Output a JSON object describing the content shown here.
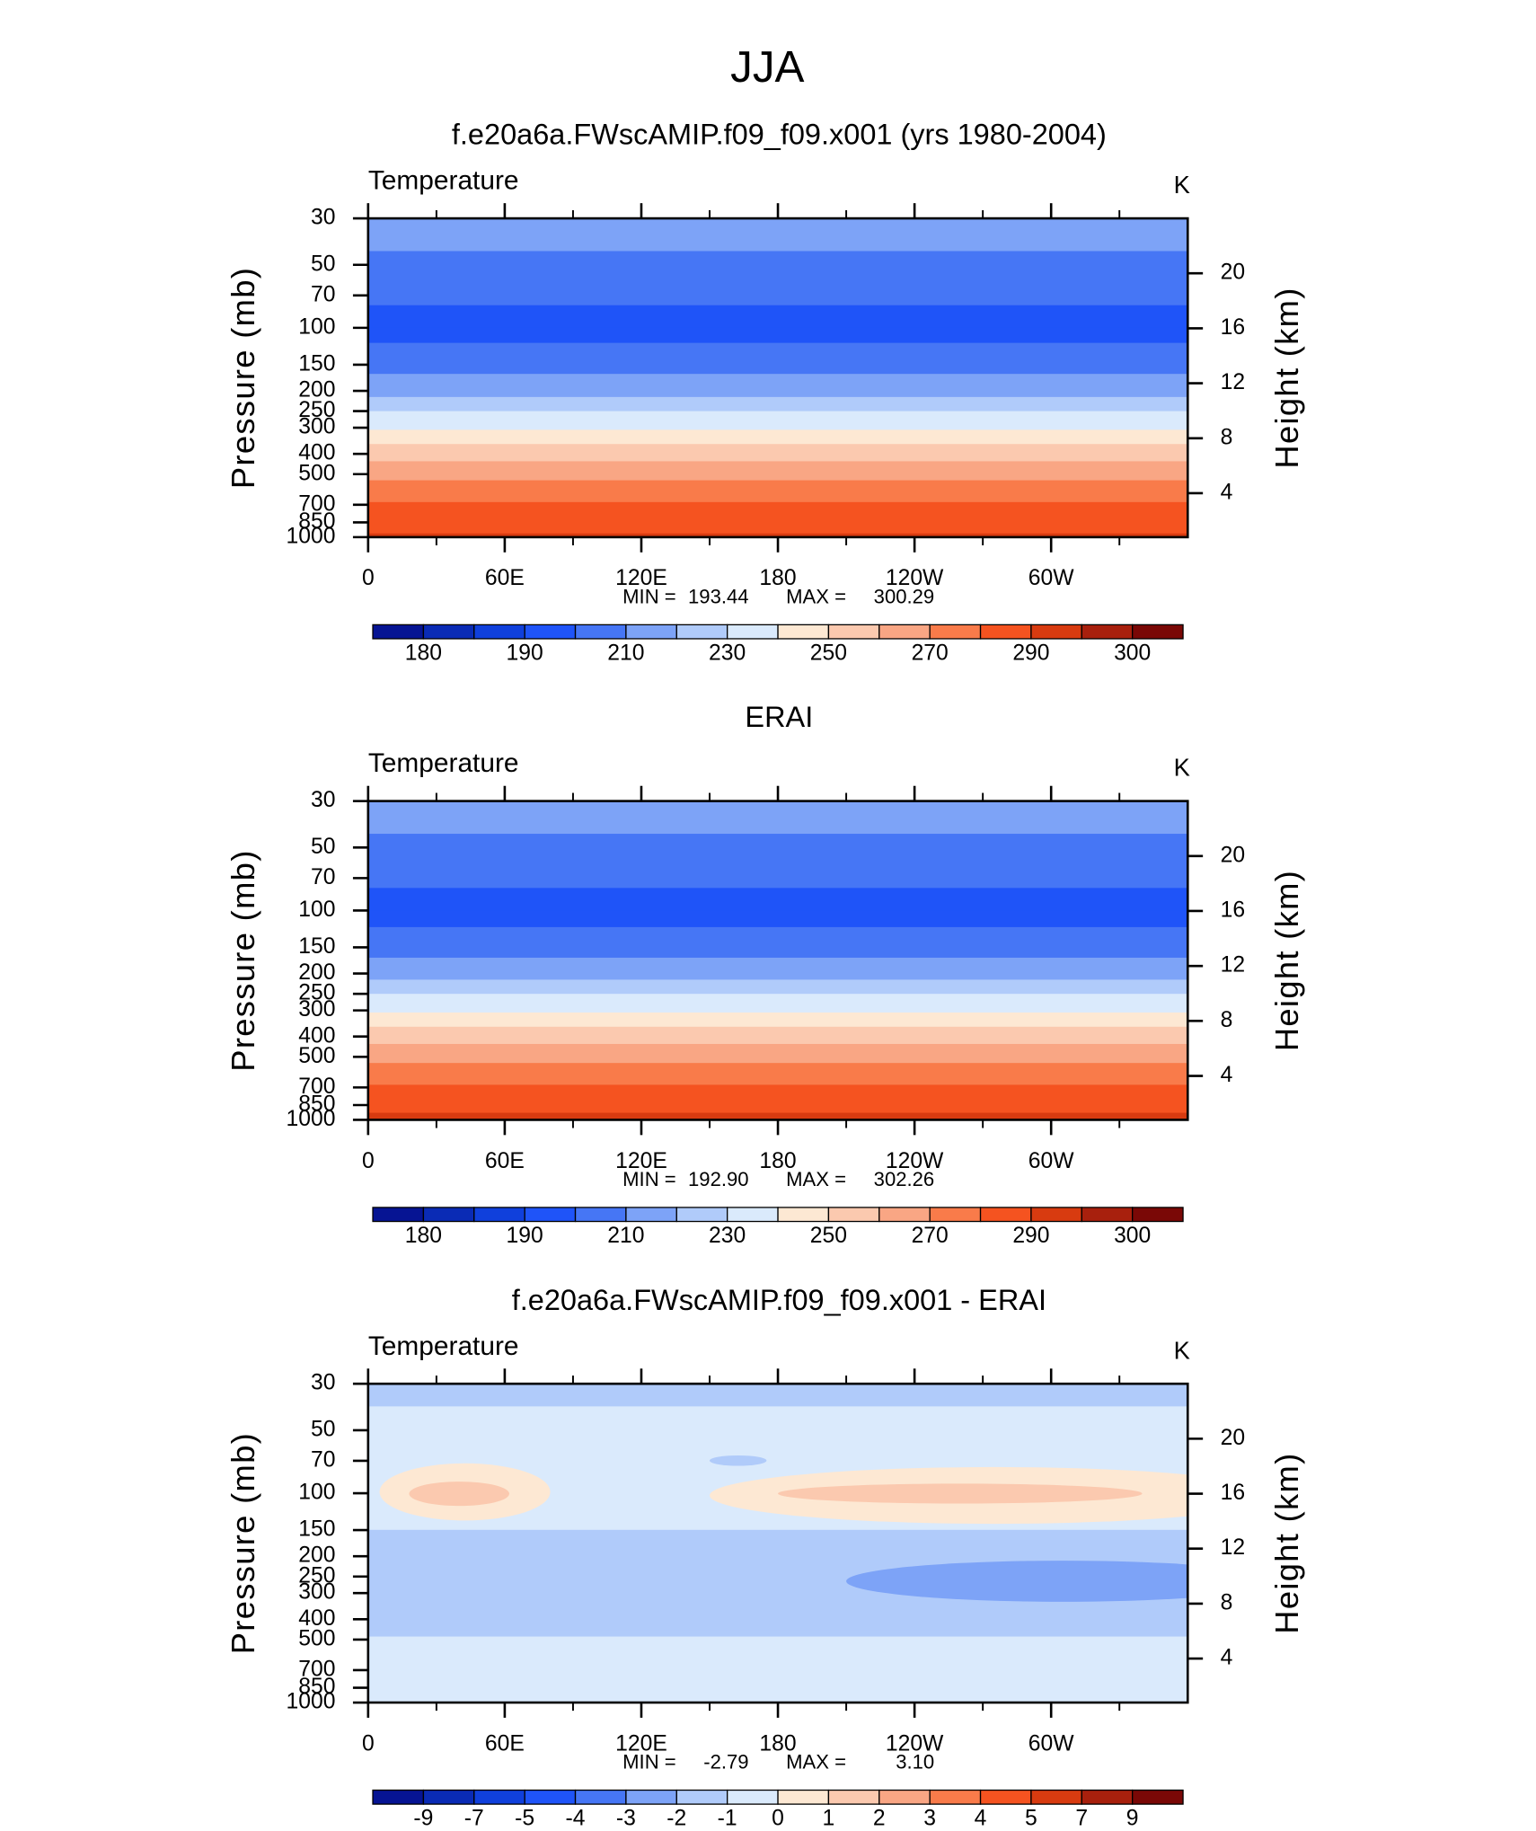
{
  "title": "JJA",
  "chart_data": [
    {
      "type": "contour",
      "title": "f.e20a6a.FWscAMIP.f09_f09.x001 (yrs 1980-2004)",
      "subtitle": "Temperature",
      "units": "K",
      "ylabel": "Pressure (mb)",
      "y2label": "Height (km)",
      "xlim": [
        0,
        360
      ],
      "xticks": [
        0,
        {
          "value": 60,
          "label": "60E"
        },
        {
          "value": 120,
          "label": "120E"
        },
        180,
        {
          "value": 240,
          "label": "120W"
        },
        {
          "value": 300,
          "label": "60W"
        }
      ],
      "xminor": [
        30,
        90,
        150,
        210,
        270,
        330
      ],
      "ylim": [
        1000,
        30
      ],
      "log_y": true,
      "yticks": [
        30,
        50,
        70,
        100,
        150,
        200,
        250,
        300,
        400,
        500,
        700,
        850,
        1000
      ],
      "y2lim": [
        0.8,
        24
      ],
      "y2ticks": [
        4,
        8,
        12,
        16,
        20
      ],
      "stats": [
        {
          "name": "MIN =",
          "value": 193.44
        },
        {
          "name": "MAX =",
          "value": 300.29
        }
      ],
      "colorbar": {
        "levels": [
          180,
          185,
          190,
          200,
          210,
          220,
          230,
          240,
          250,
          260,
          270,
          280,
          290,
          295,
          300
        ],
        "label_step": 2,
        "colors": [
          "#061493",
          "#0a2bb5",
          "#1040dc",
          "#1f54f8",
          "#4676f5",
          "#7da3f7",
          "#b0cbfa",
          "#daeafc",
          "#fde8d3",
          "#fbc9af",
          "#f9a684",
          "#f97b4a",
          "#f55320",
          "#d83b10",
          "#a8200d",
          "#7a0806"
        ]
      },
      "profile": {
        "pressure": [
          30,
          43,
          78,
          100,
          118,
          166,
          214,
          250,
          307,
          359,
          434,
          535,
          680,
          855,
          960,
          1000
        ],
        "values": [
          215,
          210,
          200,
          195,
          200,
          210,
          220,
          230,
          240,
          250,
          260,
          270,
          280,
          287,
          290,
          292
        ]
      },
      "anomalies": []
    },
    {
      "type": "contour",
      "title": "ERAI",
      "subtitle": "Temperature",
      "units": "K",
      "ylabel": "Pressure (mb)",
      "y2label": "Height (km)",
      "xlim": [
        0,
        360
      ],
      "xticks": [
        0,
        {
          "value": 60,
          "label": "60E"
        },
        {
          "value": 120,
          "label": "120E"
        },
        180,
        {
          "value": 240,
          "label": "120W"
        },
        {
          "value": 300,
          "label": "60W"
        }
      ],
      "xminor": [
        30,
        90,
        150,
        210,
        270,
        330
      ],
      "ylim": [
        1000,
        30
      ],
      "log_y": true,
      "yticks": [
        30,
        50,
        70,
        100,
        150,
        200,
        250,
        300,
        400,
        500,
        700,
        850,
        1000
      ],
      "y2lim": [
        0.8,
        24
      ],
      "y2ticks": [
        4,
        8,
        12,
        16,
        20
      ],
      "stats": [
        {
          "name": "MIN =",
          "value": 192.9,
          "label": "192.90"
        },
        {
          "name": "MAX =",
          "value": 302.26
        }
      ],
      "colorbar": {
        "levels": [
          180,
          185,
          190,
          200,
          210,
          220,
          230,
          240,
          250,
          260,
          270,
          280,
          290,
          295,
          300
        ],
        "label_step": 2,
        "colors": [
          "#061493",
          "#0a2bb5",
          "#1040dc",
          "#1f54f8",
          "#4676f5",
          "#7da3f7",
          "#b0cbfa",
          "#daeafc",
          "#fde8d3",
          "#fbc9af",
          "#f9a684",
          "#f97b4a",
          "#f55320",
          "#d83b10",
          "#a8200d",
          "#7a0806"
        ]
      },
      "profile": {
        "pressure": [
          30,
          43,
          78,
          100,
          120,
          168,
          214,
          250,
          307,
          359,
          434,
          535,
          680,
          855,
          950,
          1000
        ],
        "values": [
          215,
          210,
          200,
          194,
          200,
          210,
          220,
          230,
          240,
          250,
          260,
          270,
          280,
          287,
          291,
          294
        ]
      },
      "anomalies": []
    },
    {
      "type": "contour",
      "title": "f.e20a6a.FWscAMIP.f09_f09.x001 - ERAI",
      "subtitle": "Temperature",
      "units": "K",
      "ylabel": "Pressure (mb)",
      "y2label": "Height (km)",
      "xlim": [
        0,
        360
      ],
      "xticks": [
        0,
        {
          "value": 60,
          "label": "60E"
        },
        {
          "value": 120,
          "label": "120E"
        },
        180,
        {
          "value": 240,
          "label": "120W"
        },
        {
          "value": 300,
          "label": "60W"
        }
      ],
      "xminor": [
        30,
        90,
        150,
        210,
        270,
        330
      ],
      "ylim": [
        1000,
        30
      ],
      "log_y": true,
      "yticks": [
        30,
        50,
        70,
        100,
        150,
        200,
        250,
        300,
        400,
        500,
        700,
        850,
        1000
      ],
      "y2lim": [
        0.8,
        24
      ],
      "y2ticks": [
        4,
        8,
        12,
        16,
        20
      ],
      "stats": [
        {
          "name": "MIN =",
          "value": -2.79
        },
        {
          "name": "MAX =",
          "value": 3.1,
          "label": "3.10"
        }
      ],
      "colorbar": {
        "levels": [
          -9,
          -7,
          -5,
          -4,
          -3,
          -2,
          -1,
          0,
          1,
          2,
          3,
          4,
          5,
          7,
          9
        ],
        "label_step": 1,
        "colors": [
          "#061493",
          "#0a2bb5",
          "#1040dc",
          "#1f54f8",
          "#4676f5",
          "#7da3f7",
          "#b0cbfa",
          "#daeafc",
          "#fde8d3",
          "#fbc9af",
          "#f9a684",
          "#f97b4a",
          "#f55320",
          "#d83b10",
          "#a8200d",
          "#7a0806"
        ]
      },
      "profile": {
        "pressure": [
          30,
          37,
          40,
          140,
          160,
          450,
          520,
          1000
        ],
        "values": [
          -1.5,
          -1.5,
          -0.5,
          -0.5,
          -1.5,
          -1.5,
          -0.5,
          -0.4
        ]
      },
      "anomalies": [
        {
          "lon_span": [
            5,
            80
          ],
          "p_span": [
            72,
            135
          ],
          "value": 0.5
        },
        {
          "lon_span": [
            18,
            62
          ],
          "p_span": [
            88,
            115
          ],
          "value": 1.5
        },
        {
          "lon_span": [
            150,
            400
          ],
          "p_span": [
            75,
            140
          ],
          "value": 0.5
        },
        {
          "lon_span": [
            180,
            340
          ],
          "p_span": [
            90,
            112
          ],
          "value": 1.2
        },
        {
          "lon_span": [
            210,
            400
          ],
          "p_span": [
            210,
            330
          ],
          "value": -2.5
        },
        {
          "lon_span": [
            150,
            175
          ],
          "p_span": [
            66,
            74
          ],
          "value": -1.5
        }
      ]
    }
  ]
}
